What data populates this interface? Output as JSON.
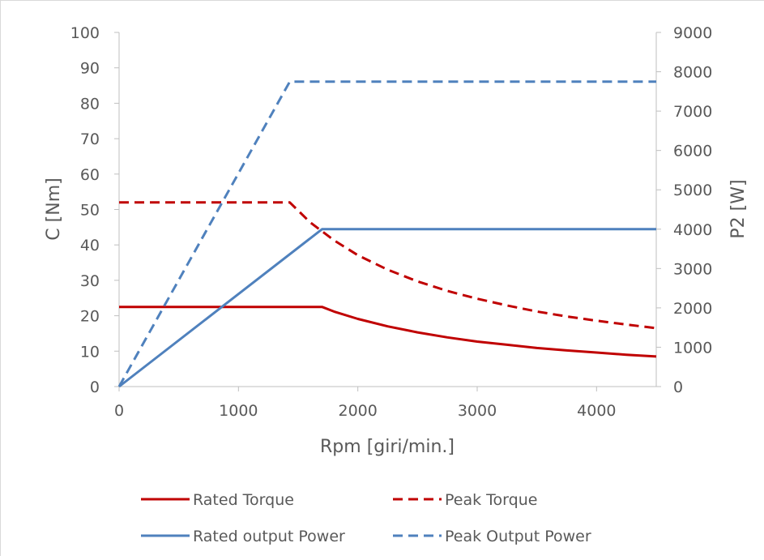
{
  "chart_data": {
    "type": "line",
    "title": "",
    "xlabel": "Rpm [giri/min.]",
    "ylabel": "C [Nm]",
    "y2label": "P2 [W]",
    "xlim": [
      0,
      4500
    ],
    "ylim": [
      0,
      100
    ],
    "y2lim": [
      0,
      9000
    ],
    "xticks": [
      0,
      1000,
      2000,
      3000,
      4000
    ],
    "yticks": [
      0,
      10,
      20,
      30,
      40,
      50,
      60,
      70,
      80,
      90,
      100
    ],
    "y2ticks": [
      0,
      1000,
      2000,
      3000,
      4000,
      5000,
      6000,
      7000,
      8000,
      9000
    ],
    "grid": false,
    "legend_position": "bottom",
    "series": [
      {
        "name": "Rated Torque",
        "axis": "left",
        "color": "#c00000",
        "style": "solid",
        "x": [
          0,
          1600,
          1700,
          1800,
          2000,
          2250,
          2500,
          2750,
          3000,
          3250,
          3500,
          3750,
          4000,
          4250,
          4500
        ],
        "y": [
          22.5,
          22.5,
          22.5,
          21.2,
          19.1,
          17.0,
          15.3,
          13.9,
          12.7,
          11.8,
          10.9,
          10.2,
          9.6,
          9.0,
          8.5
        ]
      },
      {
        "name": "Peak Torque",
        "axis": "left",
        "color": "#c00000",
        "style": "dashed",
        "x": [
          0,
          1400,
          1430,
          1600,
          1800,
          2000,
          2250,
          2500,
          2750,
          3000,
          3250,
          3500,
          3750,
          4000,
          4250,
          4500
        ],
        "y": [
          52,
          52,
          52,
          46.4,
          41.3,
          37.1,
          33.0,
          29.7,
          27.0,
          24.8,
          22.9,
          21.2,
          19.8,
          18.6,
          17.5,
          16.5
        ]
      },
      {
        "name": "Rated output Power",
        "axis": "right",
        "color": "#4f81bd",
        "style": "solid",
        "x": [
          0,
          1700,
          4500
        ],
        "y": [
          0,
          4000,
          4000
        ]
      },
      {
        "name": "Peak Output Power",
        "axis": "right",
        "color": "#4f81bd",
        "style": "dashed",
        "x": [
          0,
          1430,
          4500
        ],
        "y": [
          0,
          7750,
          7750
        ]
      }
    ]
  }
}
